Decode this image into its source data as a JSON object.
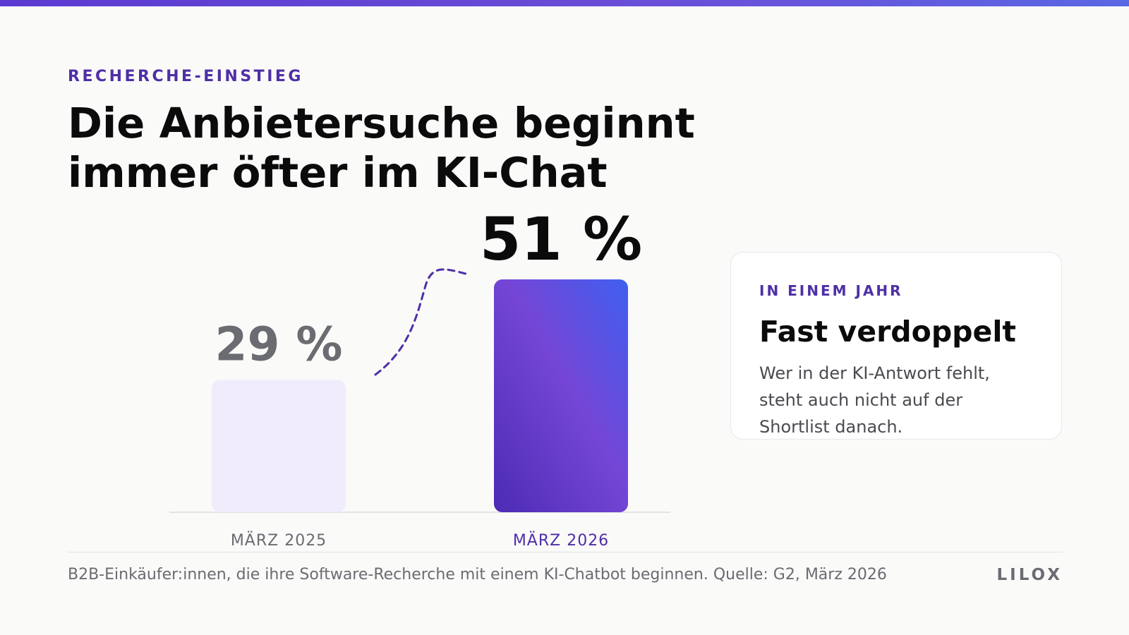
{
  "header": {
    "eyebrow": "RECHERCHE-EINSTIEG",
    "title": "Die Anbietersuche beginnt immer öfter im KI-Chat"
  },
  "chart_data": {
    "type": "bar",
    "categories": [
      "MÄRZ 2025",
      "MÄRZ 2026"
    ],
    "values": [
      29,
      51
    ],
    "value_labels": [
      "29 %",
      "51 %"
    ],
    "title": "",
    "xlabel": "",
    "ylabel": "",
    "ylim": [
      0,
      51
    ],
    "grid": false,
    "annotation": "dashed curved arrow from first to second bar",
    "colors": {
      "bar_2025": "#f0ecfb",
      "bar_2026_start": "#4c2bb3",
      "bar_2026_mid": "#7546d6",
      "bar_2026_end": "#3f5ff0",
      "label_2025": "#6b6b72",
      "label_2026": "#0b0b0c",
      "tick_2025": "#6b6b72",
      "tick_2026": "#4f2fa6",
      "arrow": "#4f2fa6"
    }
  },
  "card": {
    "eyebrow": "IN EINEM JAHR",
    "title": "Fast verdoppelt",
    "body": "Wer in der KI-Antwort fehlt, steht auch nicht auf der Shortlist danach."
  },
  "footer": {
    "note": "B2B-Einkäufer:innen, die ihre Software-Recherche mit einem KI-Chatbot beginnen. Quelle: G2, März 2026",
    "brand": "LILOX"
  }
}
